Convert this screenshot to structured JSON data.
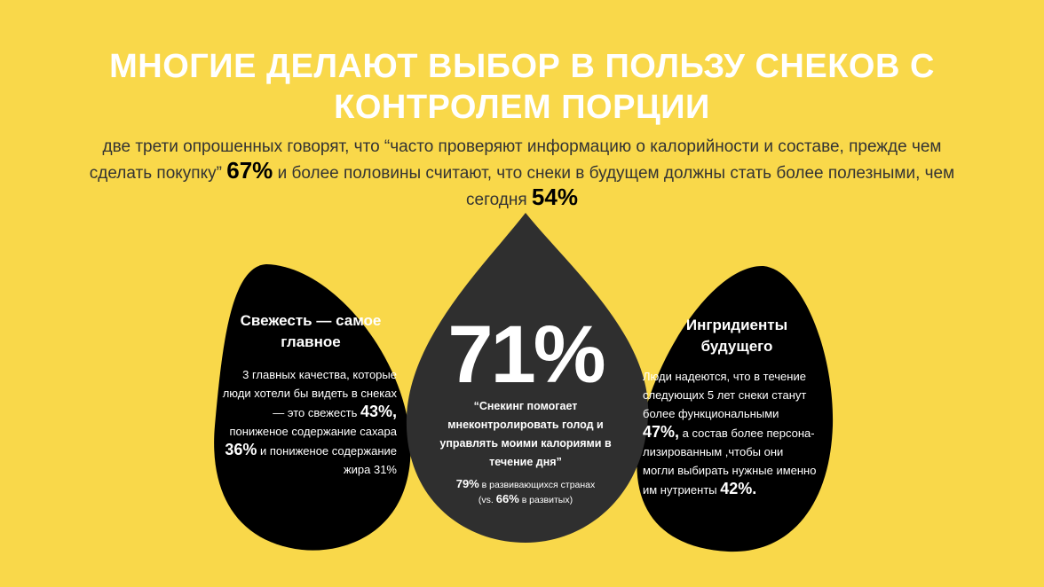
{
  "title": "МНОГИЕ ДЕЛАЮТ ВЫБОР В ПОЛЬЗУ СНЕКОВ С КОНТРОЛЕМ ПОРЦИИ",
  "intro": {
    "text_1": "две трети опрошенных говорят, что “часто проверяют информацию о калорийности и составе, прежде чем сделать покупку”",
    "stat_1": "67%",
    "text_2": "и более половины считают, что снеки в будущем должны стать более полезными, чем сегодня",
    "stat_2": "54%"
  },
  "left": {
    "heading": "Свежесть — самое главное",
    "text_1": "3 главных качества, которые люди хотели бы видеть в снеках — это свежесть",
    "stat_1": "43%,",
    "text_2": "пониженое содержание сахара",
    "stat_2": "36%",
    "text_3": "и пониженое содержание жира 31%"
  },
  "center": {
    "stat_1": "71%",
    "quote": "“Снекинг помогает мнеконтролировать голод и управлять моими калориями в течение дня”",
    "stat_2": "79%",
    "text_2": "в развивающихся странах",
    "text_3": "(vs.",
    "stat_3": "66%",
    "text_4": "в развитых)"
  },
  "right": {
    "heading": "Ингридиенты будущего",
    "text_1": "Люди надеются, что в течение следующих 5 лет снеки станут более функциональными",
    "stat_1": "47%,",
    "text_2": "а состав более персона-лизированным ,чтобы они могли выбирать нужные именно им нутриенты",
    "stat_2": "42%."
  }
}
